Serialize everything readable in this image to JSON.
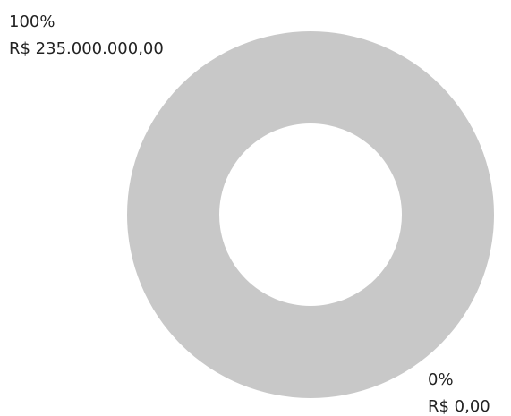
{
  "chart_data": {
    "type": "pie",
    "donut": true,
    "values": [
      100,
      0
    ],
    "value_labels": [
      "100%",
      "0%"
    ],
    "amounts": [
      235000000,
      0
    ],
    "amount_labels": [
      "R$ 235.000.000,00",
      "R$ 0,00"
    ],
    "colors": [
      "#c8c8c8",
      "#c8c8c8"
    ]
  }
}
